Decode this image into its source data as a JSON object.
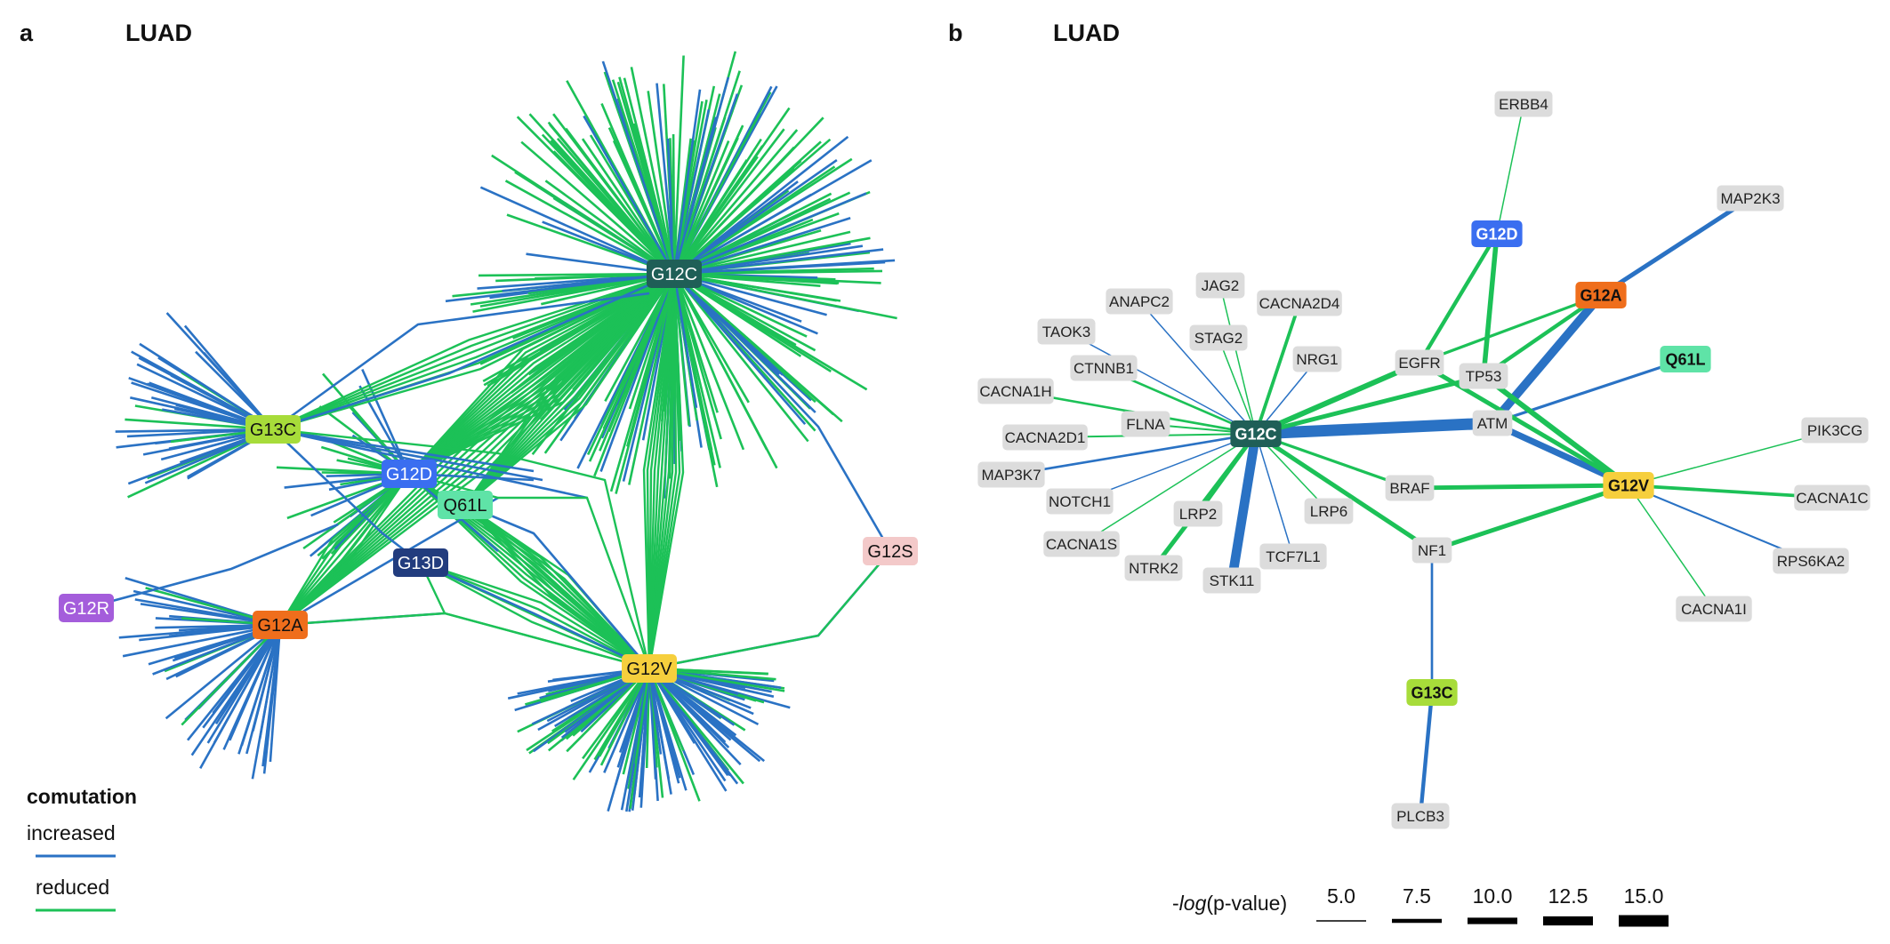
{
  "panel_a": {
    "label": "a",
    "title": "LUAD",
    "nodes": [
      {
        "id": "G12C",
        "label": "G12C",
        "fill": "#1f5f57",
        "text": "#ffffff"
      },
      {
        "id": "G13C",
        "label": "G13C",
        "fill": "#a7dc3a",
        "text": "#111111"
      },
      {
        "id": "G12D",
        "label": "G12D",
        "fill": "#3a6ef0",
        "text": "#ffffff"
      },
      {
        "id": "Q61L",
        "label": "Q61L",
        "fill": "#5fe3a7",
        "text": "#111111"
      },
      {
        "id": "G13D",
        "label": "G13D",
        "fill": "#223c7e",
        "text": "#ffffff"
      },
      {
        "id": "G12R",
        "label": "G12R",
        "fill": "#a45ddb",
        "text": "#ffffff"
      },
      {
        "id": "G12A",
        "label": "G12A",
        "fill": "#ef6e1c",
        "text": "#111111"
      },
      {
        "id": "G12V",
        "label": "G12V",
        "fill": "#f6cf3d",
        "text": "#111111"
      },
      {
        "id": "G12S",
        "label": "G12S",
        "fill": "#f3c9c9",
        "text": "#111111"
      }
    ],
    "legend": {
      "title": "comutation",
      "increased": "increased",
      "reduced": "reduced"
    }
  },
  "panel_b": {
    "label": "b",
    "title": "LUAD",
    "mutation_nodes": [
      {
        "id": "G12C",
        "label": "G12C",
        "fill": "#1f5f57",
        "text": "#ffffff"
      },
      {
        "id": "G12D",
        "label": "G12D",
        "fill": "#3a6ef0",
        "text": "#ffffff"
      },
      {
        "id": "G12A",
        "label": "G12A",
        "fill": "#ef6e1c",
        "text": "#111111"
      },
      {
        "id": "Q61L",
        "label": "Q61L",
        "fill": "#5fe3a7",
        "text": "#111111"
      },
      {
        "id": "G12V",
        "label": "G12V",
        "fill": "#f6cf3d",
        "text": "#111111"
      },
      {
        "id": "G13C",
        "label": "G13C",
        "fill": "#a7dc3a",
        "text": "#111111"
      }
    ],
    "gene_nodes": [
      "ERBB4",
      "MAP2K3",
      "JAG2",
      "ANAPC2",
      "CACNA2D4",
      "TAOK3",
      "STAG2",
      "NRG1",
      "EGFR",
      "TP53",
      "CTNNB1",
      "CACNA1H",
      "FLNA",
      "ATM",
      "CACNA2D1",
      "PIK3CG",
      "MAP3K7",
      "BRAF",
      "NOTCH1",
      "CACNA1C",
      "LRP2",
      "LRP6",
      "CACNA1S",
      "NF1",
      "TCF7L1",
      "RPS6KA2",
      "NTRK2",
      "STK11",
      "CACNA1I",
      "PLCB3"
    ],
    "edges": [
      {
        "from": "G12C",
        "to": "ATM",
        "type": "increased",
        "p": 15.0
      },
      {
        "from": "G12C",
        "to": "STK11",
        "type": "increased",
        "p": 13.0
      },
      {
        "from": "G12C",
        "to": "EGFR",
        "type": "reduced",
        "p": 9.0
      },
      {
        "from": "G12C",
        "to": "TP53",
        "type": "reduced",
        "p": 8.0
      },
      {
        "from": "G12C",
        "to": "NF1",
        "type": "reduced",
        "p": 8.0
      },
      {
        "from": "G12C",
        "to": "NTRK2",
        "type": "reduced",
        "p": 8.0
      },
      {
        "from": "G12C",
        "to": "CACNA2D4",
        "type": "reduced",
        "p": 7.0
      },
      {
        "from": "G12C",
        "to": "LRP2",
        "type": "reduced",
        "p": 7.0
      },
      {
        "from": "G12C",
        "to": "BRAF",
        "type": "reduced",
        "p": 6.5
      },
      {
        "from": "G12C",
        "to": "CACNA1H",
        "type": "reduced",
        "p": 6.0
      },
      {
        "from": "G12C",
        "to": "CTNNB1",
        "type": "reduced",
        "p": 6.0
      },
      {
        "from": "G12C",
        "to": "FLNA",
        "type": "reduced",
        "p": 5.5
      },
      {
        "from": "G12C",
        "to": "CACNA2D1",
        "type": "reduced",
        "p": 5.5
      },
      {
        "from": "G12C",
        "to": "CACNA1S",
        "type": "reduced",
        "p": 5.0
      },
      {
        "from": "G12C",
        "to": "JAG2",
        "type": "reduced",
        "p": 5.0
      },
      {
        "from": "G12C",
        "to": "STAG2",
        "type": "reduced",
        "p": 5.0
      },
      {
        "from": "G12C",
        "to": "LRP6",
        "type": "reduced",
        "p": 5.0
      },
      {
        "from": "G12C",
        "to": "MAP3K7",
        "type": "increased",
        "p": 6.0
      },
      {
        "from": "G12C",
        "to": "ANAPC2",
        "type": "increased",
        "p": 5.0
      },
      {
        "from": "G12C",
        "to": "TAOK3",
        "type": "increased",
        "p": 5.0
      },
      {
        "from": "G12C",
        "to": "NRG1",
        "type": "increased",
        "p": 5.0
      },
      {
        "from": "G12C",
        "to": "NOTCH1",
        "type": "increased",
        "p": 5.0
      },
      {
        "from": "G12C",
        "to": "TCF7L1",
        "type": "increased",
        "p": 5.0
      },
      {
        "from": "G12D",
        "to": "ERBB4",
        "type": "reduced",
        "p": 5.0
      },
      {
        "from": "G12D",
        "to": "EGFR",
        "type": "reduced",
        "p": 7.5
      },
      {
        "from": "G12D",
        "to": "TP53",
        "type": "reduced",
        "p": 8.5
      },
      {
        "from": "G12A",
        "to": "MAP2K3",
        "type": "increased",
        "p": 8.0
      },
      {
        "from": "G12A",
        "to": "ATM",
        "type": "increased",
        "p": 12.0
      },
      {
        "from": "G12A",
        "to": "EGFR",
        "type": "reduced",
        "p": 6.5
      },
      {
        "from": "G12A",
        "to": "TP53",
        "type": "reduced",
        "p": 7.5
      },
      {
        "from": "Q61L",
        "to": "ATM",
        "type": "increased",
        "p": 6.5
      },
      {
        "from": "G12V",
        "to": "ATM",
        "type": "increased",
        "p": 10.0
      },
      {
        "from": "G12V",
        "to": "EGFR",
        "type": "reduced",
        "p": 8.0
      },
      {
        "from": "G12V",
        "to": "TP53",
        "type": "reduced",
        "p": 9.0
      },
      {
        "from": "G12V",
        "to": "BRAF",
        "type": "reduced",
        "p": 8.0
      },
      {
        "from": "G12V",
        "to": "NF1",
        "type": "reduced",
        "p": 8.0
      },
      {
        "from": "G12V",
        "to": "PIK3CG",
        "type": "reduced",
        "p": 5.0
      },
      {
        "from": "G12V",
        "to": "CACNA1C",
        "type": "reduced",
        "p": 7.0
      },
      {
        "from": "G12V",
        "to": "RPS6KA2",
        "type": "increased",
        "p": 5.5
      },
      {
        "from": "G12V",
        "to": "CACNA1I",
        "type": "reduced",
        "p": 5.0
      },
      {
        "from": "G13C",
        "to": "NF1",
        "type": "increased",
        "p": 6.0
      },
      {
        "from": "G13C",
        "to": "PLCB3",
        "type": "increased",
        "p": 7.5
      }
    ],
    "pvalue_legend": {
      "label_prefix": "-",
      "label_italic": "log",
      "label_suffix": "(p-value)",
      "values": [
        "5.0",
        "7.5",
        "10.0",
        "12.5",
        "15.0"
      ]
    }
  },
  "colors": {
    "increased": "#2a72c4",
    "reduced": "#1cc157",
    "gene_box": "#dcdcdc"
  }
}
